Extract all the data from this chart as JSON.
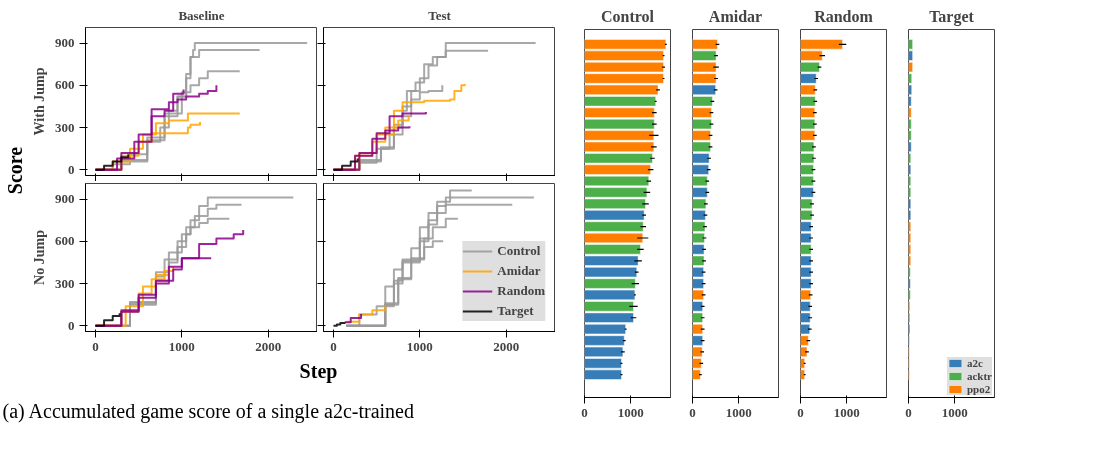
{
  "chart_data": [
    {
      "type": "step",
      "title": "Baseline",
      "ylabel": "With Jump",
      "xlim": [
        -115,
        2570
      ],
      "ylim": [
        -40,
        1010
      ],
      "xticks": [
        0,
        1000,
        2000
      ],
      "yticks": [
        0,
        300,
        600,
        900
      ],
      "tick_labels": "y",
      "annotations": [
        "Score"
      ],
      "series": [
        {
          "color": "#999999",
          "x": [
            0,
            200,
            400,
            600,
            750,
            850,
            950,
            1050,
            1100,
            1130,
            1150,
            2450
          ],
          "values": [
            0,
            40,
            110,
            200,
            300,
            420,
            520,
            650,
            800,
            850,
            900,
            900
          ]
        },
        {
          "color": "#999999",
          "x": [
            0,
            300,
            600,
            800,
            950,
            1050,
            1100,
            1200,
            1900
          ],
          "values": [
            0,
            70,
            230,
            380,
            520,
            680,
            800,
            850,
            850
          ]
        },
        {
          "color": "#999999",
          "x": [
            0,
            300,
            600,
            800,
            1000,
            1100,
            1200,
            1300,
            1670
          ],
          "values": [
            0,
            60,
            210,
            400,
            550,
            600,
            650,
            700,
            700
          ]
        },
        {
          "color": "#ffa500",
          "x": [
            0,
            200,
            400,
            550,
            700,
            850,
            1070,
            1670
          ],
          "values": [
            0,
            60,
            150,
            250,
            330,
            350,
            400,
            400
          ]
        },
        {
          "color": "#ffa500",
          "x": [
            0,
            300,
            500,
            650,
            850,
            1070,
            1100,
            1210
          ],
          "values": [
            0,
            100,
            200,
            260,
            260,
            300,
            320,
            340
          ]
        },
        {
          "color": "#8b008b",
          "x": [
            0,
            250,
            450,
            650,
            850,
            950,
            1050,
            1200,
            1300,
            1400
          ],
          "values": [
            0,
            80,
            200,
            430,
            480,
            500,
            520,
            540,
            560,
            600
          ]
        },
        {
          "color": "#8b008b",
          "x": [
            0,
            300,
            500,
            650,
            800,
            900,
            1020
          ],
          "values": [
            0,
            120,
            250,
            380,
            420,
            540,
            570
          ]
        },
        {
          "color": "#000000",
          "x": [
            0,
            100,
            200,
            300,
            380
          ],
          "values": [
            0,
            30,
            60,
            90,
            110
          ]
        }
      ]
    },
    {
      "type": "step",
      "title": "Test",
      "xlim": [
        -115,
        2570
      ],
      "ylim": [
        -40,
        1010
      ],
      "xticks": [
        0,
        1000,
        2000
      ],
      "yticks": [
        0,
        300,
        600,
        900
      ],
      "tick_labels": false,
      "series": [
        {
          "color": "#999999",
          "x": [
            0,
            300,
            550,
            700,
            800,
            850,
            950,
            1050,
            1150,
            1300,
            2340
          ],
          "values": [
            0,
            60,
            150,
            300,
            420,
            560,
            620,
            750,
            800,
            900,
            900
          ]
        },
        {
          "color": "#999999",
          "x": [
            0,
            300,
            550,
            700,
            800,
            900,
            1000,
            1100,
            1200,
            1300,
            1790
          ],
          "values": [
            0,
            70,
            160,
            320,
            450,
            560,
            650,
            740,
            800,
            845,
            845
          ]
        },
        {
          "color": "#999999",
          "x": [
            0,
            300,
            500,
            650,
            800,
            900,
            1000,
            1100,
            1260
          ],
          "values": [
            0,
            50,
            150,
            250,
            380,
            500,
            550,
            560,
            600
          ]
        },
        {
          "color": "#ffa500",
          "x": [
            0,
            300,
            500,
            700,
            800,
            1050,
            1350,
            1400,
            1480,
            1520
          ],
          "values": [
            0,
            120,
            250,
            420,
            480,
            490,
            500,
            560,
            600,
            610
          ]
        },
        {
          "color": "#ffa500",
          "x": [
            0,
            250,
            450,
            600,
            750,
            870
          ],
          "values": [
            0,
            100,
            200,
            300,
            350,
            380
          ]
        },
        {
          "color": "#8b008b",
          "x": [
            0,
            300,
            500,
            650,
            800,
            1070
          ],
          "values": [
            0,
            120,
            260,
            380,
            400,
            410
          ]
        },
        {
          "color": "#8b008b",
          "x": [
            0,
            250,
            450,
            600,
            750,
            880
          ],
          "values": [
            0,
            100,
            220,
            280,
            300,
            310
          ]
        },
        {
          "color": "#000000",
          "x": [
            0,
            100,
            200,
            280
          ],
          "values": [
            0,
            30,
            60,
            80
          ]
        }
      ]
    },
    {
      "type": "step",
      "ylabel": "No Jump",
      "xlim": [
        -115,
        2570
      ],
      "ylim": [
        -40,
        1010
      ],
      "xticks": [
        0,
        1000,
        2000
      ],
      "yticks": [
        0,
        300,
        600,
        900
      ],
      "annotations": [
        "Step",
        "(a) Accumulated game score of a single a2c-trained"
      ],
      "series": [
        {
          "color": "#999999",
          "x": [
            0,
            400,
            700,
            850,
            950,
            1050,
            1100,
            1200,
            1300,
            2290
          ],
          "values": [
            0,
            150,
            320,
            450,
            560,
            650,
            750,
            850,
            910,
            910
          ]
        },
        {
          "color": "#999999",
          "x": [
            0,
            400,
            700,
            800,
            950,
            1050,
            1150,
            1300,
            1400,
            1690
          ],
          "values": [
            0,
            160,
            350,
            470,
            600,
            700,
            780,
            830,
            860,
            860
          ]
        },
        {
          "color": "#999999",
          "x": [
            0,
            400,
            700,
            850,
            1000,
            1100,
            1200,
            1300,
            1550
          ],
          "values": [
            0,
            170,
            380,
            520,
            650,
            700,
            730,
            760,
            760
          ]
        },
        {
          "color": "#ffa500",
          "x": [
            0,
            300,
            500,
            650,
            800,
            900
          ],
          "values": [
            0,
            100,
            230,
            330,
            390,
            420
          ]
        },
        {
          "color": "#ffa500",
          "x": [
            0,
            350,
            550,
            700,
            850
          ],
          "values": [
            0,
            140,
            280,
            360,
            380
          ]
        },
        {
          "color": "#8b008b",
          "x": [
            0,
            300,
            500,
            700,
            900,
            1000,
            1200,
            1400,
            1600,
            1710
          ],
          "values": [
            0,
            110,
            220,
            320,
            400,
            480,
            580,
            620,
            650,
            680
          ]
        },
        {
          "color": "#8b008b",
          "x": [
            0,
            300,
            500,
            700,
            850,
            1000,
            1340
          ],
          "values": [
            0,
            100,
            200,
            300,
            420,
            480,
            480
          ]
        },
        {
          "color": "#000000",
          "x": [
            0,
            100,
            200,
            280
          ],
          "values": [
            0,
            40,
            70,
            90
          ]
        }
      ]
    },
    {
      "type": "step",
      "xlim": [
        -115,
        2570
      ],
      "ylim": [
        -40,
        1010
      ],
      "xticks": [
        0,
        1000,
        2000
      ],
      "yticks": [
        0,
        300,
        600,
        900
      ],
      "tick_labels": "x",
      "legend": "bottom right",
      "series": [
        {
          "name": "Control",
          "color": "#999999",
          "x": [
            150,
            300,
            500,
            600,
            700,
            800,
            900,
            1000,
            1100,
            1200,
            1300,
            2320
          ],
          "values": [
            0,
            80,
            140,
            280,
            400,
            470,
            550,
            700,
            800,
            850,
            910,
            910
          ]
        },
        {
          "color": "#999999",
          "x": [
            150,
            600,
            700,
            800,
            1000,
            1100,
            1200,
            1350,
            1600
          ],
          "values": [
            0,
            140,
            300,
            450,
            600,
            750,
            880,
            960,
            960
          ]
        },
        {
          "color": "#999999",
          "x": [
            150,
            600,
            700,
            800,
            1000,
            1100,
            1200,
            1300,
            2070
          ],
          "values": [
            0,
            150,
            320,
            460,
            620,
            720,
            800,
            860,
            860
          ]
        },
        {
          "color": "#999999",
          "x": [
            150,
            600,
            750,
            900,
            1050,
            1150,
            1300,
            1440
          ],
          "values": [
            0,
            160,
            340,
            480,
            620,
            700,
            760,
            760
          ]
        },
        {
          "color": "#999999",
          "x": [
            150,
            600,
            750,
            900,
            1050,
            1150,
            1270
          ],
          "values": [
            0,
            150,
            330,
            470,
            560,
            600,
            600
          ]
        },
        {
          "name": "Amidar",
          "color": "#ffa500",
          "x": [
            150,
            300,
            450,
            600
          ],
          "values": [
            30,
            80,
            110,
            140
          ]
        },
        {
          "name": "Random",
          "color": "#8b008b",
          "x": [
            130,
            200,
            320
          ],
          "values": [
            25,
            55,
            85
          ]
        },
        {
          "name": "Target",
          "color": "#000000",
          "x": [
            0,
            40,
            80,
            130
          ],
          "values": [
            0,
            10,
            20,
            25
          ]
        }
      ]
    },
    {
      "type": "bar",
      "title": "Control",
      "orientation": "horizontal",
      "stacked": true,
      "xlim": [
        0,
        1860
      ],
      "xticks": [
        0,
        1000
      ],
      "categories": [
        null,
        null,
        null,
        null,
        null,
        null,
        null,
        null,
        null,
        null,
        null,
        null,
        null,
        null,
        null,
        null,
        null,
        null,
        null,
        null,
        null,
        null,
        null,
        null,
        null,
        null,
        null,
        null,
        null,
        null
      ],
      "series": [
        {
          "color": "#377eb8",
          "values": [
            null,
            null,
            null,
            null,
            null,
            null,
            null,
            null,
            null,
            null,
            null,
            null,
            null,
            null,
            null,
            1290,
            null,
            null,
            null,
            1160,
            1130,
            null,
            1090,
            null,
            1060,
            890,
            860,
            830,
            800,
            800
          ],
          "errors": [
            null,
            null,
            null,
            null,
            null,
            null,
            null,
            null,
            null,
            null,
            null,
            null,
            null,
            null,
            null,
            40,
            null,
            null,
            null,
            80,
            40,
            null,
            20,
            null,
            60,
            20,
            30,
            40,
            20,
            20
          ]
        },
        {
          "color": "#4daf4a",
          "values": [
            null,
            null,
            null,
            null,
            null,
            1540,
            null,
            1510,
            null,
            null,
            1470,
            null,
            1390,
            1350,
            1320,
            null,
            1270,
            null,
            1210,
            null,
            null,
            1100,
            null,
            1060,
            null,
            null,
            null,
            null,
            null,
            null
          ],
          "errors": [
            null,
            null,
            null,
            null,
            null,
            20,
            null,
            50,
            null,
            null,
            50,
            null,
            50,
            70,
            70,
            null,
            60,
            null,
            70,
            null,
            null,
            80,
            null,
            90,
            null,
            null,
            null,
            null,
            null,
            null
          ]
        },
        {
          "color": "#ff7f00",
          "values": [
            1760,
            1710,
            1710,
            1710,
            1590,
            null,
            1510,
            null,
            1500,
            1500,
            null,
            1430,
            null,
            null,
            null,
            null,
            null,
            1260,
            null,
            null,
            null,
            null,
            null,
            null,
            null,
            null,
            null,
            null,
            null,
            null
          ],
          "errors": [
            20,
            20,
            30,
            20,
            40,
            null,
            50,
            null,
            100,
            60,
            null,
            60,
            null,
            null,
            null,
            null,
            null,
            120,
            null,
            null,
            null,
            null,
            null,
            null,
            null,
            null,
            null,
            null,
            null,
            null
          ]
        }
      ]
    },
    {
      "type": "bar",
      "title": "Amidar",
      "orientation": "horizontal",
      "stacked": true,
      "xlim": [
        0,
        1860
      ],
      "xticks": [
        0,
        1000
      ],
      "categories": [
        null,
        null,
        null,
        null,
        null,
        null,
        null,
        null,
        null,
        null,
        null,
        null,
        null,
        null,
        null,
        null,
        null,
        null,
        null,
        null,
        null,
        null,
        null,
        null,
        null,
        null,
        null,
        null,
        null,
        null
      ],
      "series": [
        {
          "color": "#377eb8",
          "values": [
            null,
            null,
            null,
            null,
            500,
            null,
            null,
            null,
            null,
            null,
            360,
            350,
            null,
            320,
            null,
            280,
            null,
            null,
            250,
            null,
            240,
            240,
            null,
            220,
            null,
            null,
            220,
            null,
            null,
            null
          ],
          "errors": [
            null,
            null,
            null,
            null,
            40,
            null,
            null,
            null,
            null,
            null,
            40,
            40,
            null,
            40,
            null,
            40,
            null,
            null,
            40,
            null,
            40,
            40,
            null,
            40,
            null,
            null,
            40,
            null,
            null,
            null
          ]
        },
        {
          "color": "#4daf4a",
          "values": [
            null,
            510,
            null,
            null,
            null,
            430,
            null,
            410,
            null,
            390,
            null,
            null,
            320,
            null,
            290,
            null,
            270,
            260,
            null,
            250,
            null,
            null,
            null,
            null,
            220,
            null,
            null,
            null,
            null,
            null
          ],
          "errors": [
            null,
            40,
            null,
            null,
            null,
            40,
            null,
            40,
            null,
            40,
            null,
            null,
            40,
            null,
            40,
            null,
            40,
            40,
            null,
            40,
            null,
            null,
            null,
            null,
            40,
            null,
            null,
            null,
            null,
            null
          ]
        },
        {
          "color": "#ff7f00",
          "values": [
            540,
            null,
            510,
            510,
            null,
            null,
            410,
            null,
            390,
            null,
            null,
            null,
            null,
            null,
            null,
            null,
            null,
            null,
            null,
            null,
            null,
            null,
            240,
            null,
            null,
            220,
            null,
            210,
            190,
            170
          ],
          "errors": [
            40,
            null,
            60,
            40,
            null,
            null,
            40,
            null,
            40,
            null,
            null,
            null,
            null,
            null,
            null,
            null,
            null,
            null,
            null,
            null,
            null,
            null,
            40,
            null,
            null,
            40,
            null,
            40,
            40,
            30
          ]
        }
      ]
    },
    {
      "type": "bar",
      "title": "Random",
      "orientation": "horizontal",
      "stacked": true,
      "xlim": [
        0,
        1860
      ],
      "xticks": [
        0,
        1000
      ],
      "categories": [
        null,
        null,
        null,
        null,
        null,
        null,
        null,
        null,
        null,
        null,
        null,
        null,
        null,
        null,
        null,
        null,
        null,
        null,
        null,
        null,
        null,
        null,
        null,
        null,
        null,
        null,
        null,
        null,
        null,
        null
      ],
      "series": [
        {
          "color": "#377eb8",
          "values": [
            null,
            null,
            null,
            340,
            null,
            null,
            null,
            null,
            null,
            null,
            null,
            null,
            null,
            280,
            null,
            null,
            230,
            230,
            null,
            230,
            230,
            230,
            null,
            210,
            210,
            200,
            null,
            null,
            null,
            null
          ],
          "errors": [
            null,
            null,
            null,
            40,
            null,
            null,
            null,
            null,
            null,
            null,
            null,
            null,
            null,
            40,
            null,
            null,
            40,
            40,
            null,
            40,
            40,
            40,
            null,
            40,
            40,
            40,
            null,
            null,
            null,
            null
          ]
        },
        {
          "color": "#4daf4a",
          "values": [
            null,
            null,
            410,
            null,
            null,
            320,
            null,
            310,
            null,
            290,
            290,
            280,
            280,
            null,
            250,
            250,
            null,
            null,
            230,
            null,
            null,
            null,
            null,
            null,
            null,
            null,
            null,
            null,
            null,
            null
          ],
          "errors": [
            null,
            null,
            40,
            null,
            null,
            40,
            null,
            40,
            null,
            40,
            40,
            40,
            40,
            null,
            40,
            40,
            null,
            null,
            40,
            null,
            null,
            null,
            null,
            null,
            null,
            null,
            null,
            null,
            null,
            null
          ]
        },
        {
          "color": "#ff7f00",
          "values": [
            910,
            470,
            null,
            null,
            320,
            null,
            310,
            null,
            310,
            null,
            null,
            null,
            null,
            null,
            null,
            null,
            null,
            null,
            null,
            null,
            null,
            null,
            220,
            null,
            null,
            null,
            170,
            140,
            90,
            90
          ],
          "errors": [
            80,
            60,
            null,
            null,
            40,
            null,
            40,
            null,
            40,
            null,
            null,
            null,
            null,
            null,
            null,
            null,
            null,
            null,
            null,
            null,
            null,
            null,
            40,
            null,
            null,
            null,
            40,
            40,
            20,
            20
          ]
        }
      ]
    },
    {
      "type": "bar",
      "title": "Target",
      "orientation": "horizontal",
      "stacked": true,
      "xlim": [
        0,
        1860
      ],
      "xticks": [
        0,
        1000
      ],
      "legend": "bottom right",
      "categories": [
        null,
        null,
        null,
        null,
        null,
        null,
        null,
        null,
        null,
        null,
        null,
        null,
        null,
        null,
        null,
        null,
        null,
        null,
        null,
        null,
        null,
        null,
        null,
        null,
        null,
        null,
        null,
        null,
        null,
        null
      ],
      "series": [
        {
          "name": "a2c",
          "color": "#377eb8",
          "values": [
            null,
            90,
            null,
            null,
            70,
            60,
            null,
            null,
            null,
            60,
            null,
            50,
            null,
            null,
            50,
            50,
            null,
            null,
            null,
            null,
            null,
            40,
            null,
            null,
            null,
            30,
            20,
            null,
            null,
            null
          ]
        },
        {
          "name": "acktr",
          "color": "#4daf4a",
          "values": [
            90,
            null,
            null,
            70,
            null,
            null,
            null,
            60,
            60,
            null,
            50,
            null,
            50,
            50,
            null,
            null,
            null,
            null,
            null,
            null,
            40,
            null,
            40,
            null,
            30,
            null,
            null,
            null,
            null,
            null
          ]
        },
        {
          "name": "ppo2",
          "color": "#ff7f00",
          "values": [
            null,
            null,
            90,
            null,
            null,
            null,
            60,
            null,
            null,
            null,
            null,
            null,
            null,
            null,
            null,
            null,
            50,
            50,
            50,
            50,
            null,
            null,
            null,
            30,
            null,
            null,
            null,
            20,
            20,
            20
          ]
        }
      ]
    }
  ]
}
